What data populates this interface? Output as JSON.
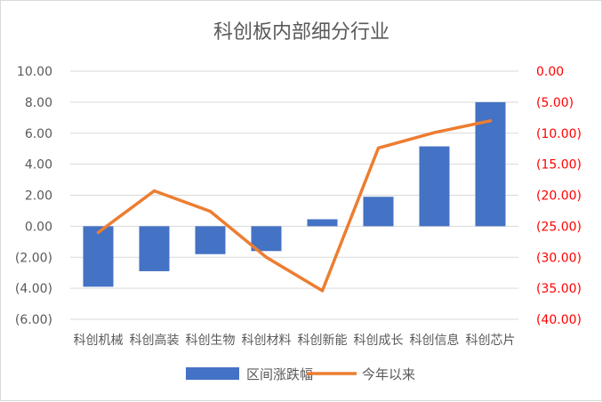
{
  "chart_data": {
    "type": "bar+line",
    "title": "科创板内部细分行业",
    "categories": [
      "科创机械",
      "科创高装",
      "科创生物",
      "科创材料",
      "科创新能",
      "科创成长",
      "科创信息",
      "科创芯片"
    ],
    "series": [
      {
        "name": "区间涨跌幅",
        "type": "bar",
        "axis": "left",
        "color": "#4472c4",
        "values": [
          -3.9,
          -2.9,
          -1.8,
          -1.6,
          0.45,
          1.9,
          5.15,
          8.0
        ]
      },
      {
        "name": "今年以来",
        "type": "line",
        "axis": "right",
        "color": "#ed7d31",
        "values": [
          -26.0,
          -19.3,
          -22.6,
          -30.0,
          -35.4,
          -12.4,
          -9.9,
          -8.0
        ]
      }
    ],
    "left_axis": {
      "ylim": [
        -6,
        10
      ],
      "ticks": [
        "10.00",
        "8.00",
        "6.00",
        "4.00",
        "2.00",
        "0.00",
        "(2.00)",
        "(4.00)",
        "(6.00)"
      ],
      "color": "#595959"
    },
    "right_axis": {
      "ylim": [
        -40,
        0
      ],
      "ticks": [
        "0.00",
        "(5.00)",
        "(10.00)",
        "(15.00)",
        "(20.00)",
        "(25.00)",
        "(30.00)",
        "(35.00)",
        "(40.00)"
      ],
      "color": "#ff0000"
    },
    "grid": true,
    "legend_position": "bottom"
  }
}
